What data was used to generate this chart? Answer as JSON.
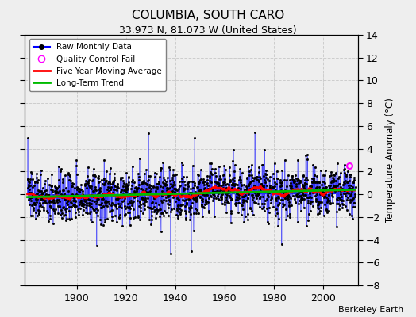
{
  "title": "COLUMBIA, SOUTH CARO",
  "subtitle": "33.973 N, 81.073 W (United States)",
  "ylabel": "Temperature Anomaly (°C)",
  "credit": "Berkeley Earth",
  "year_start": 1880,
  "year_end": 2013,
  "ylim": [
    -8,
    14
  ],
  "yticks": [
    -8,
    -6,
    -4,
    -2,
    0,
    2,
    4,
    6,
    8,
    10,
    12,
    14
  ],
  "xticks": [
    1900,
    1920,
    1940,
    1960,
    1980,
    2000
  ],
  "raw_color": "#0000ff",
  "moving_avg_color": "#ff0000",
  "trend_color": "#00bb00",
  "qc_color": "#ff00ff",
  "background_color": "#eeeeee",
  "grid_color": "#cccccc",
  "seed": 137
}
